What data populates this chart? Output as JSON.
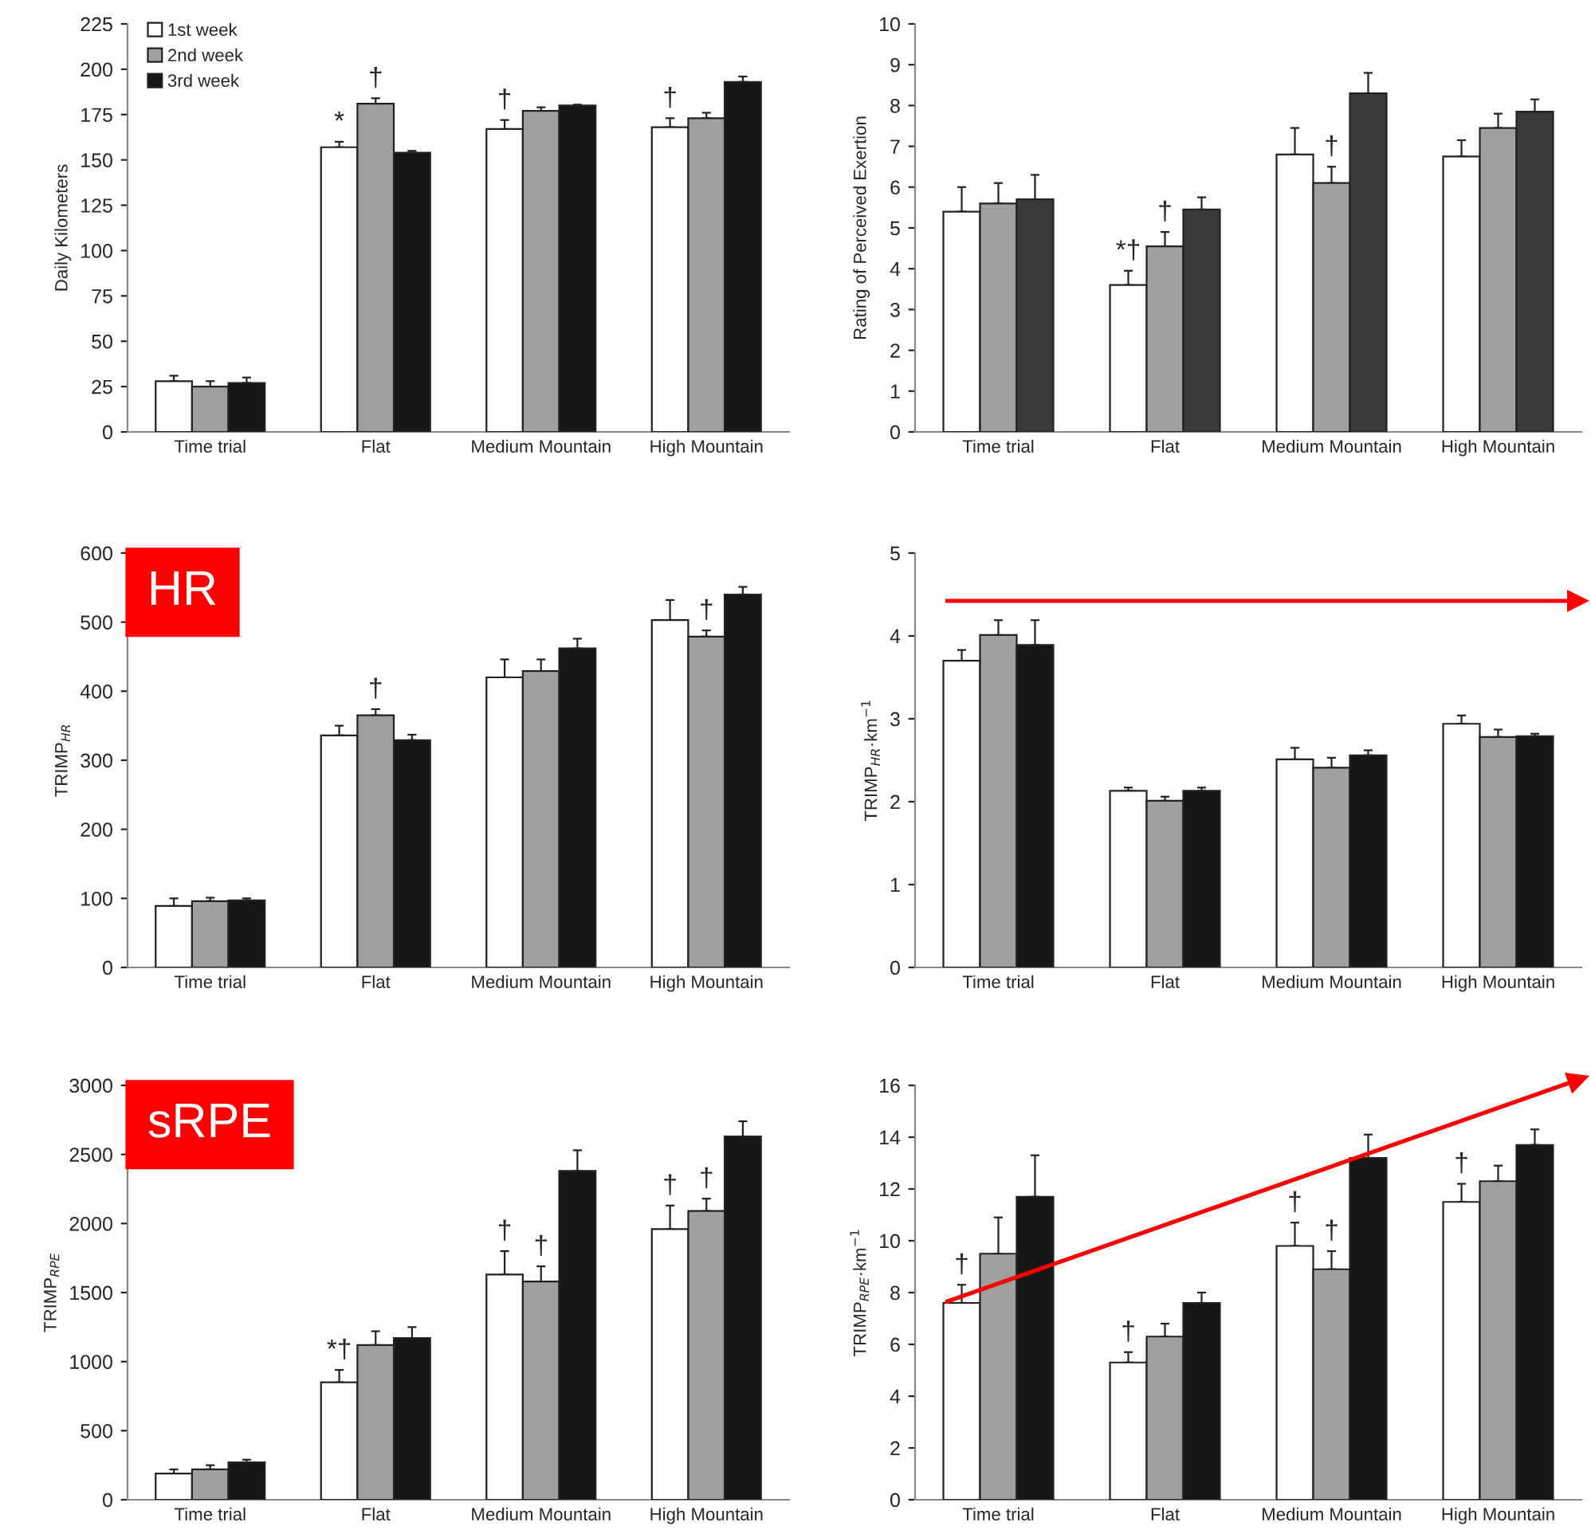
{
  "chart_data": [
    {
      "type": "bar",
      "ylabel": "Daily Kilometers",
      "categories": [
        "Time trial",
        "Flat",
        "Medium Mountain",
        "High Mountain"
      ],
      "ylim": [
        0,
        225
      ],
      "yticks": [
        0,
        25,
        50,
        75,
        100,
        125,
        150,
        175,
        200,
        225
      ],
      "legend": "top left",
      "series": [
        {
          "name": "1st week",
          "color": "#ffffff",
          "values": [
            28,
            157,
            167,
            168
          ],
          "errors": [
            [
              28,
              31
            ],
            [
              157,
              160
            ],
            [
              167,
              172
            ],
            [
              168,
              173
            ]
          ],
          "value_labels": [
            null,
            "*",
            "†",
            "†"
          ]
        },
        {
          "name": "2nd week",
          "color": "#a0a0a0",
          "values": [
            25,
            181,
            177,
            173
          ],
          "errors": [
            [
              25,
              28
            ],
            [
              181,
              184
            ],
            [
              177,
              179
            ],
            [
              173,
              176
            ]
          ],
          "value_labels": [
            null,
            "†",
            null,
            null
          ]
        },
        {
          "name": "3rd week",
          "color": "#161616",
          "values": [
            27,
            154,
            180,
            193
          ],
          "errors": [
            [
              27,
              30
            ],
            [
              154,
              155
            ],
            [
              180,
              180.5
            ],
            [
              193,
              196
            ]
          ]
        }
      ]
    },
    {
      "type": "bar",
      "ylabel": "Rating of Perceived Exertion",
      "categories": [
        "Time trial",
        "Flat",
        "Medium Mountain",
        "High Mountain"
      ],
      "ylim": [
        0,
        10
      ],
      "yticks": [
        0,
        1,
        2,
        3,
        4,
        5,
        6,
        7,
        8,
        9,
        10
      ],
      "series": [
        {
          "color": "#ffffff",
          "values": [
            5.4,
            3.6,
            6.8,
            6.75
          ],
          "errors": [
            [
              5.4,
              6.0
            ],
            [
              3.6,
              3.95
            ],
            [
              6.8,
              7.45
            ],
            [
              6.75,
              7.15
            ]
          ],
          "value_labels": [
            null,
            "*†",
            null,
            null
          ]
        },
        {
          "color": "#a0a0a0",
          "values": [
            5.6,
            4.55,
            6.1,
            7.45
          ],
          "errors": [
            [
              5.6,
              6.1
            ],
            [
              4.55,
              4.9
            ],
            [
              6.1,
              6.5
            ],
            [
              7.45,
              7.8
            ]
          ],
          "value_labels": [
            null,
            "†",
            "†",
            null
          ]
        },
        {
          "color": "#3a3a3a",
          "values": [
            5.7,
            5.45,
            8.3,
            7.85
          ],
          "errors": [
            [
              5.7,
              6.3
            ],
            [
              5.45,
              5.75
            ],
            [
              8.3,
              8.8
            ],
            [
              7.85,
              8.15
            ]
          ]
        }
      ]
    },
    {
      "type": "bar",
      "ylabel": "TRIMP$_{HR}$",
      "categories": [
        "Time trial",
        "Flat",
        "Medium Mountain",
        "High Mountain"
      ],
      "ylim": [
        0,
        600
      ],
      "yticks": [
        0,
        100,
        200,
        300,
        400,
        500,
        600
      ],
      "series": [
        {
          "color": "#ffffff",
          "values": [
            89,
            336,
            420,
            503
          ],
          "errors": [
            [
              89,
              100
            ],
            [
              336,
              350
            ],
            [
              420,
              446
            ],
            [
              503,
              532
            ]
          ]
        },
        {
          "color": "#a0a0a0",
          "values": [
            96,
            365,
            429,
            479
          ],
          "errors": [
            [
              96,
              101
            ],
            [
              365,
              374
            ],
            [
              429,
              446
            ],
            [
              479,
              488
            ]
          ],
          "value_labels": [
            null,
            "†",
            null,
            "†"
          ]
        },
        {
          "color": "#161616",
          "values": [
            97,
            329,
            462,
            540
          ],
          "errors": [
            [
              97,
              100
            ],
            [
              329,
              337
            ],
            [
              462,
              476
            ],
            [
              540,
              551
            ]
          ]
        }
      ],
      "annotations": [
        "HR"
      ]
    },
    {
      "type": "bar",
      "ylabel": "TRIMP$_{HR}$·km$^{−1}$",
      "categories": [
        "Time trial",
        "Flat",
        "Medium Mountain",
        "High Mountain"
      ],
      "ylim": [
        0,
        5
      ],
      "yticks": [
        0,
        1,
        2,
        3,
        4,
        5
      ],
      "series": [
        {
          "color": "#ffffff",
          "values": [
            3.7,
            2.13,
            2.51,
            2.94
          ],
          "errors": [
            [
              3.7,
              3.83
            ],
            [
              2.13,
              2.17
            ],
            [
              2.51,
              2.65
            ],
            [
              2.94,
              3.04
            ]
          ]
        },
        {
          "color": "#a0a0a0",
          "values": [
            4.01,
            2.01,
            2.41,
            2.78
          ],
          "errors": [
            [
              4.01,
              4.19
            ],
            [
              2.01,
              2.06
            ],
            [
              2.41,
              2.53
            ],
            [
              2.78,
              2.87
            ]
          ]
        },
        {
          "color": "#161616",
          "values": [
            3.89,
            2.13,
            2.56,
            2.79
          ],
          "errors": [
            [
              3.89,
              4.19
            ],
            [
              2.13,
              2.17
            ],
            [
              2.56,
              2.62
            ],
            [
              2.79,
              2.82
            ]
          ]
        }
      ]
    },
    {
      "type": "bar",
      "ylabel": "TRIMP$_{RPE}$",
      "categories": [
        "Time trial",
        "Flat",
        "Medium Mountain",
        "High Mountain"
      ],
      "ylim": [
        0,
        3000
      ],
      "yticks": [
        0,
        500,
        1000,
        1500,
        2000,
        2500,
        3000
      ],
      "series": [
        {
          "color": "#ffffff",
          "values": [
            190,
            850,
            1630,
            1960
          ],
          "errors": [
            [
              190,
              220
            ],
            [
              850,
              940
            ],
            [
              1630,
              1800
            ],
            [
              1960,
              2130
            ]
          ],
          "value_labels": [
            null,
            "*†",
            "†",
            "†"
          ]
        },
        {
          "color": "#a0a0a0",
          "values": [
            220,
            1120,
            1580,
            2090
          ],
          "errors": [
            [
              220,
              250
            ],
            [
              1120,
              1220
            ],
            [
              1580,
              1690
            ],
            [
              2090,
              2180
            ]
          ],
          "value_labels": [
            null,
            null,
            "†",
            "†"
          ]
        },
        {
          "color": "#161616",
          "values": [
            270,
            1170,
            2380,
            2630
          ],
          "errors": [
            [
              270,
              290
            ],
            [
              1170,
              1250
            ],
            [
              2380,
              2530
            ],
            [
              2630,
              2740
            ]
          ]
        }
      ],
      "annotations": [
        "sRPE"
      ]
    },
    {
      "type": "bar",
      "ylabel": "TRIMP$_{RPE}$·km$^{−1}$",
      "categories": [
        "Time trial",
        "Flat",
        "Medium Mountain",
        "High Mountain"
      ],
      "ylim": [
        0,
        16
      ],
      "yticks": [
        0,
        2,
        4,
        6,
        8,
        10,
        12,
        14,
        16
      ],
      "series": [
        {
          "color": "#ffffff",
          "values": [
            7.6,
            5.3,
            9.8,
            11.5
          ],
          "errors": [
            [
              7.6,
              8.3
            ],
            [
              5.3,
              5.7
            ],
            [
              9.8,
              10.7
            ],
            [
              11.5,
              12.2
            ]
          ],
          "value_labels": [
            "†",
            "†",
            "†",
            "†"
          ]
        },
        {
          "color": "#a0a0a0",
          "values": [
            9.5,
            6.3,
            8.9,
            12.3
          ],
          "errors": [
            [
              9.5,
              10.9
            ],
            [
              6.3,
              6.8
            ],
            [
              8.9,
              9.6
            ],
            [
              12.3,
              12.9
            ]
          ],
          "value_labels": [
            null,
            null,
            "†",
            null
          ]
        },
        {
          "color": "#161616",
          "values": [
            11.7,
            7.6,
            13.2,
            13.7
          ],
          "errors": [
            [
              11.7,
              13.3
            ],
            [
              7.6,
              8.0
            ],
            [
              13.2,
              14.1
            ],
            [
              13.7,
              14.3
            ]
          ]
        }
      ]
    }
  ]
}
